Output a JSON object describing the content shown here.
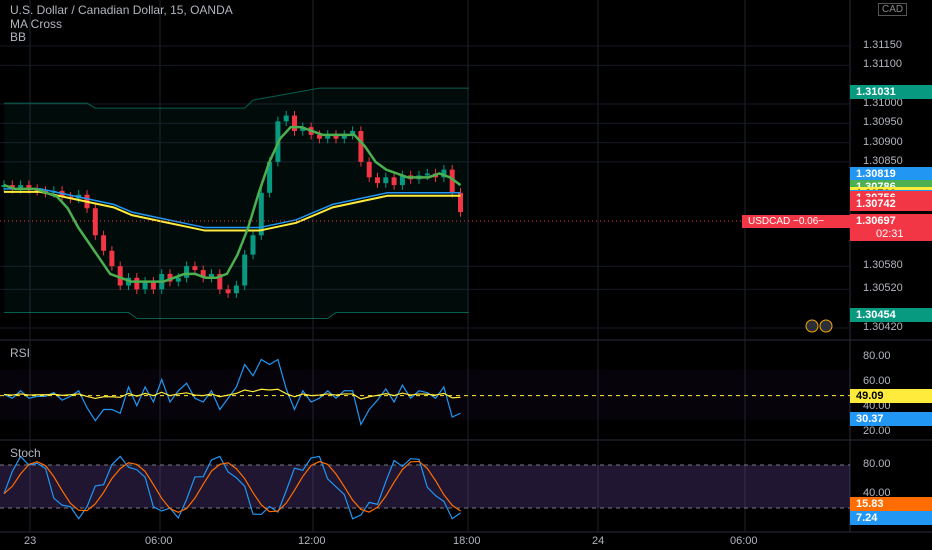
{
  "legend": {
    "symbol": "U.S. Dollar / Canadian Dollar, 15, OANDA",
    "ind1": "MA Cross",
    "ind2": "BB",
    "rsi": "RSI",
    "stoch": "Stoch"
  },
  "currency": "CAD",
  "price_axis": {
    "ticks": [
      "1.31150",
      "1.31100",
      "1.31000",
      "1.30950",
      "1.30900",
      "1.30850",
      "1.30580",
      "1.30520",
      "1.30420"
    ],
    "tick_values": [
      1.3115,
      1.311,
      1.31,
      1.3095,
      1.309,
      1.3085,
      1.3058,
      1.3052,
      1.3042
    ],
    "badges": [
      {
        "text": "1.31031",
        "value": 1.31031,
        "color": "#089981"
      },
      {
        "text": "1.30819",
        "value": 1.30819,
        "color": "#2196f3"
      },
      {
        "text": "1.30786",
        "value": 1.30786,
        "color": "#4caf50"
      },
      {
        "text": "1.30766",
        "value": 1.30766,
        "color": "#ffeb3b"
      },
      {
        "text": "1.30759",
        "value": 1.30759,
        "color": "#2196f3"
      },
      {
        "text": "1.30756",
        "value": 1.30756,
        "color": "#f23645"
      },
      {
        "text": "1.30742",
        "value": 1.30742,
        "color": "#f23645"
      },
      {
        "text": "1.30697",
        "value": 1.30697,
        "color": "#f23645"
      },
      {
        "text": "1.30454",
        "value": 1.30454,
        "color": "#089981"
      }
    ],
    "current_label": "USDCAD −0.06−",
    "countdown": "02:31"
  },
  "rsi_axis": {
    "ticks": [
      "80.00",
      "60.00",
      "40.00",
      "20.00"
    ],
    "badges": [
      {
        "text": "49.09",
        "color": "#ffeb3b"
      },
      {
        "text": "30.37",
        "color": "#2196f3"
      }
    ]
  },
  "stoch_axis": {
    "ticks": [
      "80.00",
      "40.00"
    ],
    "badges": [
      {
        "text": "15.83",
        "color": "#ff6d00"
      },
      {
        "text": "7.24",
        "color": "#2196f3"
      }
    ]
  },
  "time_axis": [
    "23",
    "06:00",
    "12:00",
    "18:00",
    "24",
    "06:00"
  ],
  "colors": {
    "up": "#089981",
    "down": "#f23645",
    "ma_fast": "#4caf50",
    "ma_slow": "#ffeb3b",
    "bb": "#2196f3"
  },
  "chart_data": {
    "type": "candlestick",
    "closes": [
      1.3079,
      1.3078,
      1.3079,
      1.3078,
      1.30775,
      1.3077,
      1.30775,
      1.3076,
      1.30755,
      1.30765,
      1.3073,
      1.3066,
      1.3062,
      1.3058,
      1.3053,
      1.3055,
      1.3052,
      1.3054,
      1.3052,
      1.3056,
      1.3054,
      1.3055,
      1.3058,
      1.3057,
      1.3055,
      1.3056,
      1.3052,
      1.3051,
      1.3053,
      1.3061,
      1.3066,
      1.3077,
      1.3085,
      1.30955,
      1.3097,
      1.3093,
      1.3094,
      1.3092,
      1.3091,
      1.3092,
      1.3091,
      1.3092,
      1.3093,
      1.3085,
      1.3081,
      1.30795,
      1.3081,
      1.3079,
      1.30815,
      1.30805,
      1.30815,
      1.3082,
      1.3081,
      1.3083,
      1.3077,
      1.3072
    ],
    "ma_fast": [
      1.3079,
      1.3078,
      1.3078,
      1.3078,
      1.3077,
      1.3076,
      1.3073,
      1.3068,
      1.3064,
      1.306,
      1.3056,
      1.3055,
      1.3054,
      1.3054,
      1.3054,
      1.3054,
      1.3055,
      1.3056,
      1.3056,
      1.3055,
      1.3055,
      1.3056,
      1.3061,
      1.3068,
      1.3077,
      1.3085,
      1.3091,
      1.3094,
      1.3094,
      1.3093,
      1.3092,
      1.3092,
      1.3092,
      1.3092,
      1.3089,
      1.3085,
      1.3083,
      1.3082,
      1.3081,
      1.3081,
      1.3081,
      1.3082,
      1.3081,
      1.3079
    ],
    "ma_slow": [
      1.3078,
      1.3078,
      1.3078,
      1.3077,
      1.3076,
      1.3075,
      1.3074,
      1.3072,
      1.3071,
      1.307,
      1.3069,
      1.3068,
      1.3068,
      1.3068,
      1.3068,
      1.3069,
      1.307,
      1.3072,
      1.3074,
      1.3075,
      1.3076,
      1.3077,
      1.3077,
      1.3077,
      1.3077,
      1.3077
    ]
  }
}
